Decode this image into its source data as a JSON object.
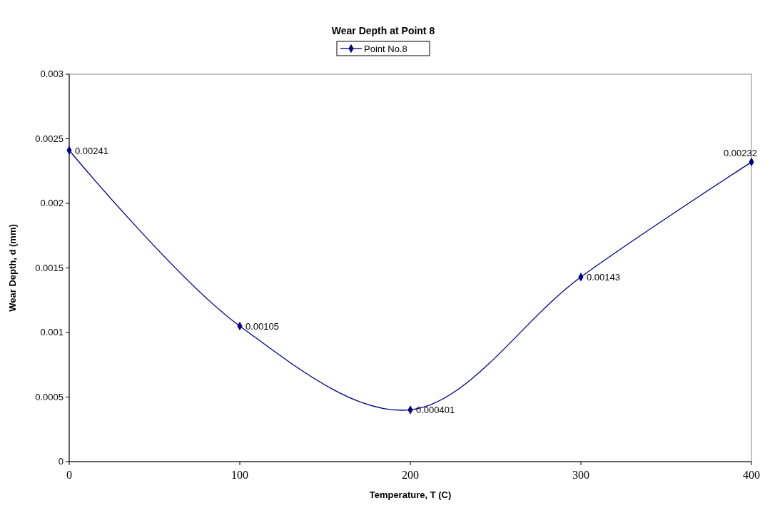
{
  "chart_data": {
    "type": "line",
    "title": "Wear Depth at Point 8",
    "xlabel": "Temperature, T (C)",
    "ylabel": "Wear Depth, d (mm)",
    "x": [
      0,
      100,
      200,
      300,
      400
    ],
    "series": [
      {
        "name": "Point No.8",
        "color": "#000080",
        "values": [
          0.00241,
          0.00105,
          0.000401,
          0.00143,
          0.00232
        ]
      }
    ],
    "xlim": [
      0,
      400
    ],
    "xticks": [
      0,
      100,
      200,
      300,
      400
    ],
    "ylim": [
      0,
      0.003
    ],
    "yticks": [
      0,
      0.0005,
      0.001,
      0.0015,
      0.002,
      0.0025,
      0.003
    ],
    "data_labels": true,
    "legend": "top",
    "marker": "diamond",
    "line_style": "solid",
    "grid": false
  }
}
